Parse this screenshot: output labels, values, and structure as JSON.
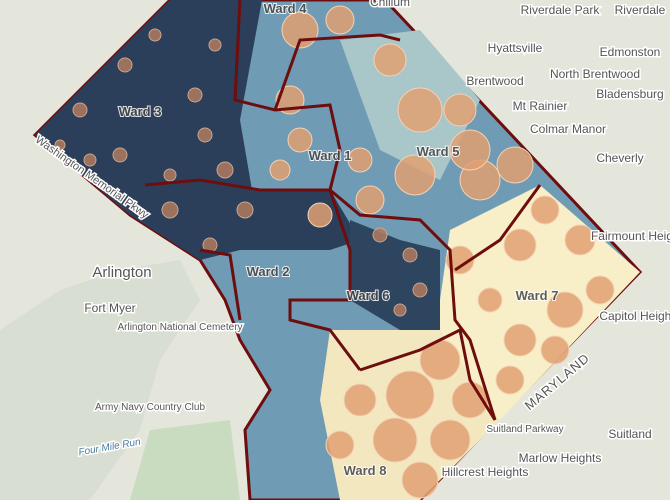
{
  "map": {
    "places": [
      "Chillum",
      "Riverdale Park",
      "Riverdale",
      "Hyattsville",
      "Edmonston",
      "Brentwood",
      "North Brentwood",
      "Bladensburg",
      "Mt Rainier",
      "Colmar Manor",
      "Cheverly",
      "Fairmount Heights",
      "Arlington",
      "Fort Myer",
      "Arlington National Cemetery",
      "Capitol Heights",
      "Army Navy Country Club",
      "Suitland Parkway",
      "Suitland",
      "Marlow Heights",
      "Hillcrest Heights",
      "MARYLAND",
      "Four Mile Run",
      "Washington Memorial Pkwy"
    ],
    "wards": [
      "Ward 1",
      "Ward 2",
      "Ward 3",
      "Ward 4",
      "Ward 5",
      "Ward 6",
      "Ward 7",
      "Ward 8"
    ]
  }
}
